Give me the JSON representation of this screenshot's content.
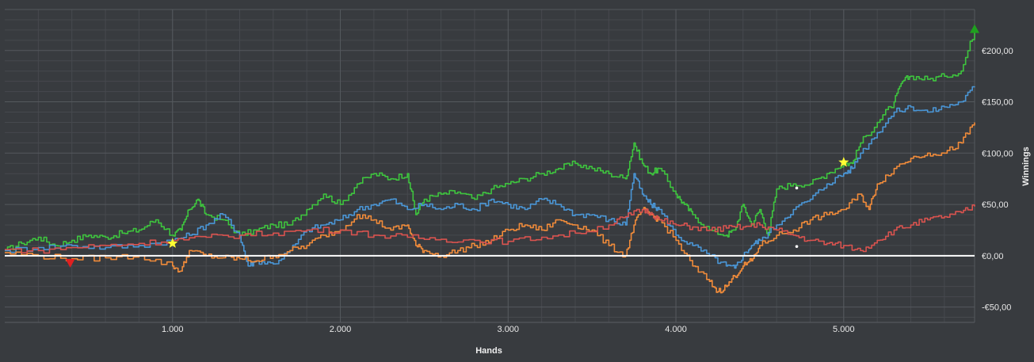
{
  "chart_data": {
    "type": "line",
    "xlabel": "Hands",
    "ylabel": "Winnings",
    "xlim": [
      0,
      5780
    ],
    "ylim": [
      -65,
      240
    ],
    "x_ticks": [
      1000,
      2000,
      3000,
      4000,
      5000
    ],
    "x_tick_labels": [
      "1.000",
      "2.000",
      "3.000",
      "4.000",
      "5.000"
    ],
    "y_ticks": [
      -50,
      0,
      50,
      100,
      150,
      200
    ],
    "y_tick_labels": [
      "-€50,00",
      "€0,00",
      "€50,00",
      "€100,00",
      "€150,00",
      "€200,00"
    ],
    "grid": true,
    "colors": {
      "background": "#383b3f",
      "grid_major": "#55595e",
      "grid_minor": "#46494e",
      "zero_line": "#ffffff"
    },
    "series": [
      {
        "color": "#3ec43e",
        "points": [
          [
            0,
            5
          ],
          [
            100,
            12
          ],
          [
            200,
            18
          ],
          [
            300,
            10
          ],
          [
            400,
            15
          ],
          [
            500,
            20
          ],
          [
            600,
            18
          ],
          [
            700,
            22
          ],
          [
            800,
            25
          ],
          [
            900,
            35
          ],
          [
            1000,
            20
          ],
          [
            1050,
            25
          ],
          [
            1100,
            45
          ],
          [
            1150,
            55
          ],
          [
            1200,
            40
          ],
          [
            1300,
            35
          ],
          [
            1400,
            20
          ],
          [
            1500,
            25
          ],
          [
            1600,
            30
          ],
          [
            1700,
            30
          ],
          [
            1800,
            45
          ],
          [
            1900,
            60
          ],
          [
            2000,
            50
          ],
          [
            2100,
            70
          ],
          [
            2200,
            80
          ],
          [
            2300,
            75
          ],
          [
            2400,
            80
          ],
          [
            2450,
            40
          ],
          [
            2500,
            55
          ],
          [
            2600,
            60
          ],
          [
            2700,
            62
          ],
          [
            2800,
            55
          ],
          [
            2900,
            65
          ],
          [
            3000,
            70
          ],
          [
            3100,
            75
          ],
          [
            3200,
            80
          ],
          [
            3300,
            85
          ],
          [
            3400,
            90
          ],
          [
            3500,
            85
          ],
          [
            3600,
            80
          ],
          [
            3700,
            75
          ],
          [
            3750,
            110
          ],
          [
            3800,
            90
          ],
          [
            3850,
            80
          ],
          [
            3900,
            85
          ],
          [
            4000,
            60
          ],
          [
            4050,
            50
          ],
          [
            4100,
            40
          ],
          [
            4200,
            25
          ],
          [
            4300,
            20
          ],
          [
            4350,
            25
          ],
          [
            4400,
            50
          ],
          [
            4450,
            30
          ],
          [
            4500,
            45
          ],
          [
            4550,
            20
          ],
          [
            4600,
            65
          ],
          [
            4700,
            70
          ],
          [
            4800,
            70
          ],
          [
            4900,
            80
          ],
          [
            5000,
            90
          ],
          [
            5050,
            90
          ],
          [
            5100,
            110
          ],
          [
            5200,
            130
          ],
          [
            5300,
            150
          ],
          [
            5350,
            170
          ],
          [
            5400,
            175
          ],
          [
            5500,
            172
          ],
          [
            5600,
            175
          ],
          [
            5700,
            180
          ],
          [
            5780,
            220
          ]
        ]
      },
      {
        "color": "#4a96d6",
        "points": [
          [
            0,
            5
          ],
          [
            200,
            8
          ],
          [
            400,
            10
          ],
          [
            600,
            8
          ],
          [
            800,
            10
          ],
          [
            1000,
            15
          ],
          [
            1100,
            20
          ],
          [
            1200,
            30
          ],
          [
            1300,
            40
          ],
          [
            1400,
            20
          ],
          [
            1450,
            -10
          ],
          [
            1500,
            -5
          ],
          [
            1600,
            -8
          ],
          [
            1700,
            5
          ],
          [
            1800,
            25
          ],
          [
            1900,
            30
          ],
          [
            2000,
            35
          ],
          [
            2100,
            45
          ],
          [
            2200,
            50
          ],
          [
            2300,
            55
          ],
          [
            2400,
            45
          ],
          [
            2500,
            50
          ],
          [
            2600,
            45
          ],
          [
            2700,
            50
          ],
          [
            2800,
            45
          ],
          [
            2900,
            55
          ],
          [
            3000,
            50
          ],
          [
            3100,
            45
          ],
          [
            3200,
            55
          ],
          [
            3300,
            50
          ],
          [
            3400,
            40
          ],
          [
            3500,
            40
          ],
          [
            3600,
            35
          ],
          [
            3700,
            30
          ],
          [
            3750,
            80
          ],
          [
            3800,
            60
          ],
          [
            3850,
            50
          ],
          [
            3900,
            45
          ],
          [
            4000,
            20
          ],
          [
            4100,
            10
          ],
          [
            4200,
            0
          ],
          [
            4300,
            -10
          ],
          [
            4350,
            -12
          ],
          [
            4400,
            0
          ],
          [
            4450,
            10
          ],
          [
            4500,
            15
          ],
          [
            4600,
            30
          ],
          [
            4700,
            45
          ],
          [
            4800,
            55
          ],
          [
            4900,
            70
          ],
          [
            5000,
            80
          ],
          [
            5050,
            85
          ],
          [
            5100,
            100
          ],
          [
            5200,
            120
          ],
          [
            5300,
            140
          ],
          [
            5400,
            145
          ],
          [
            5500,
            140
          ],
          [
            5600,
            145
          ],
          [
            5700,
            150
          ],
          [
            5780,
            165
          ]
        ]
      },
      {
        "color": "#f08b3a",
        "points": [
          [
            0,
            3
          ],
          [
            200,
            0
          ],
          [
            400,
            -3
          ],
          [
            600,
            -2
          ],
          [
            800,
            0
          ],
          [
            1000,
            -10
          ],
          [
            1050,
            -15
          ],
          [
            1100,
            5
          ],
          [
            1200,
            0
          ],
          [
            1300,
            -2
          ],
          [
            1400,
            -3
          ],
          [
            1500,
            -5
          ],
          [
            1600,
            0
          ],
          [
            1700,
            5
          ],
          [
            1800,
            10
          ],
          [
            1900,
            20
          ],
          [
            2000,
            25
          ],
          [
            2100,
            40
          ],
          [
            2200,
            35
          ],
          [
            2300,
            25
          ],
          [
            2400,
            30
          ],
          [
            2450,
            10
          ],
          [
            2500,
            5
          ],
          [
            2600,
            0
          ],
          [
            2700,
            5
          ],
          [
            2800,
            10
          ],
          [
            2900,
            15
          ],
          [
            3000,
            25
          ],
          [
            3100,
            30
          ],
          [
            3200,
            25
          ],
          [
            3300,
            35
          ],
          [
            3400,
            30
          ],
          [
            3500,
            25
          ],
          [
            3600,
            10
          ],
          [
            3700,
            0
          ],
          [
            3750,
            30
          ],
          [
            3800,
            45
          ],
          [
            3850,
            40
          ],
          [
            3900,
            35
          ],
          [
            4000,
            15
          ],
          [
            4100,
            -10
          ],
          [
            4200,
            -25
          ],
          [
            4250,
            -35
          ],
          [
            4300,
            -30
          ],
          [
            4350,
            -20
          ],
          [
            4400,
            -10
          ],
          [
            4450,
            -5
          ],
          [
            4500,
            10
          ],
          [
            4600,
            20
          ],
          [
            4700,
            25
          ],
          [
            4800,
            35
          ],
          [
            4900,
            40
          ],
          [
            5000,
            45
          ],
          [
            5100,
            60
          ],
          [
            5150,
            45
          ],
          [
            5200,
            70
          ],
          [
            5300,
            85
          ],
          [
            5400,
            95
          ],
          [
            5500,
            100
          ],
          [
            5600,
            100
          ],
          [
            5700,
            110
          ],
          [
            5780,
            130
          ]
        ]
      },
      {
        "color": "#d9534f",
        "points": [
          [
            0,
            6
          ],
          [
            200,
            5
          ],
          [
            400,
            8
          ],
          [
            600,
            10
          ],
          [
            800,
            12
          ],
          [
            1000,
            15
          ],
          [
            1200,
            18
          ],
          [
            1400,
            20
          ],
          [
            1600,
            22
          ],
          [
            1800,
            25
          ],
          [
            2000,
            25
          ],
          [
            2200,
            20
          ],
          [
            2400,
            18
          ],
          [
            2600,
            16
          ],
          [
            2800,
            15
          ],
          [
            3000,
            14
          ],
          [
            3200,
            18
          ],
          [
            3400,
            22
          ],
          [
            3600,
            30
          ],
          [
            3700,
            38
          ],
          [
            3800,
            45
          ],
          [
            3850,
            42
          ],
          [
            3900,
            35
          ],
          [
            4000,
            30
          ],
          [
            4100,
            28
          ],
          [
            4200,
            25
          ],
          [
            4300,
            27
          ],
          [
            4400,
            28
          ],
          [
            4500,
            30
          ],
          [
            4600,
            25
          ],
          [
            4700,
            20
          ],
          [
            4800,
            15
          ],
          [
            4900,
            12
          ],
          [
            5000,
            10
          ],
          [
            5100,
            5
          ],
          [
            5200,
            15
          ],
          [
            5300,
            25
          ],
          [
            5400,
            30
          ],
          [
            5500,
            35
          ],
          [
            5600,
            38
          ],
          [
            5700,
            42
          ],
          [
            5780,
            48
          ]
        ]
      }
    ],
    "markers": [
      {
        "type": "triangle-down",
        "color": "#e02020",
        "x": 390,
        "y": -7
      },
      {
        "type": "star",
        "color": "#ffff33",
        "x": 1000,
        "y": 12
      },
      {
        "type": "star",
        "color": "#ffff33",
        "x": 5000,
        "y": 91
      },
      {
        "type": "dot",
        "color": "#ffffff",
        "x": 4720,
        "y": 66
      },
      {
        "type": "dot",
        "color": "#ffffff",
        "x": 4720,
        "y": 9
      },
      {
        "type": "triangle-up",
        "color": "#1fa01f",
        "x": 5780,
        "y": 221
      }
    ]
  }
}
